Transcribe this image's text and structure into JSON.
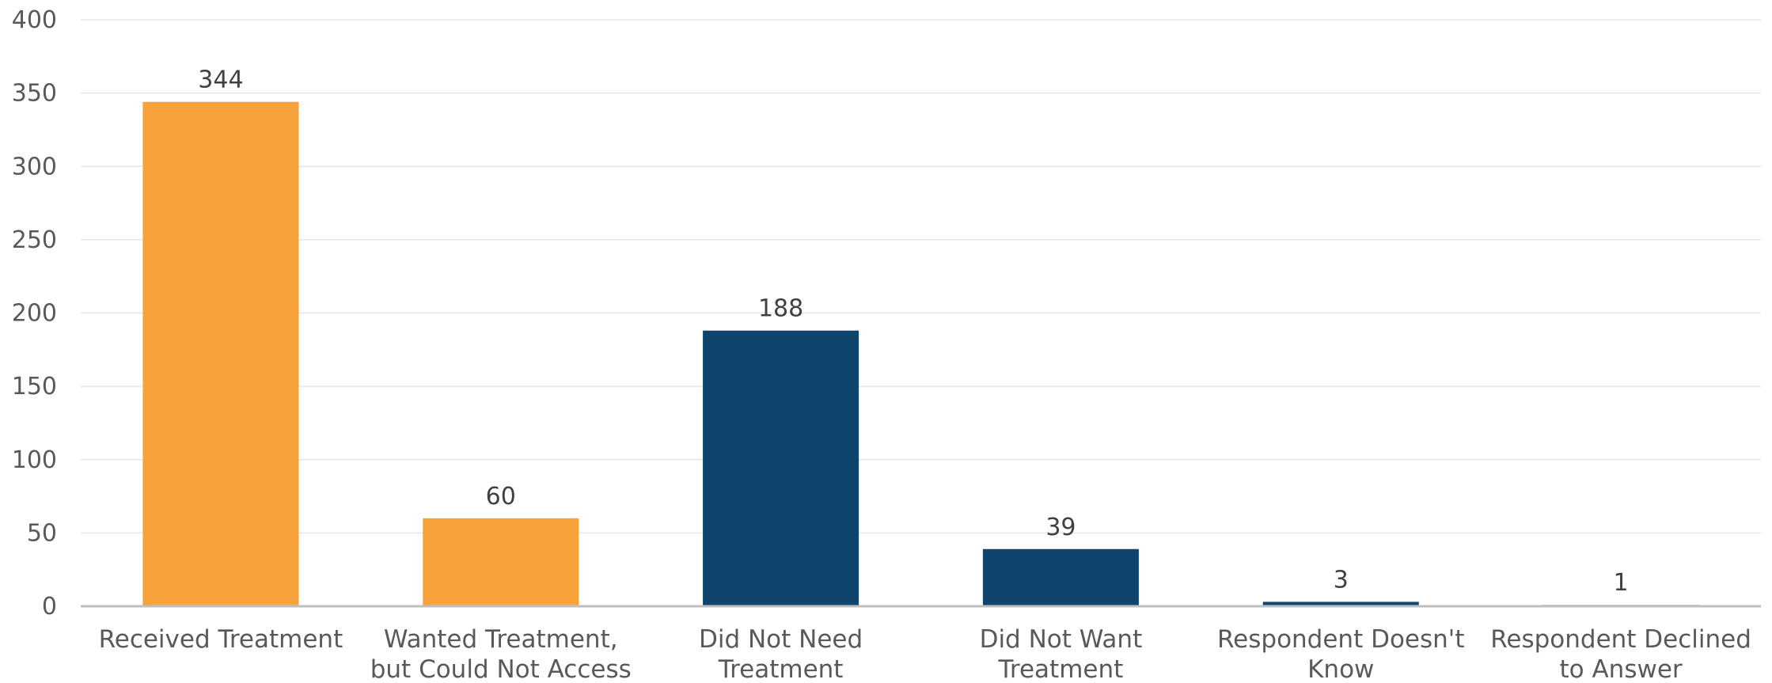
{
  "chart_data": {
    "type": "bar",
    "title": "",
    "xlabel": "",
    "ylabel": "",
    "categories": [
      [
        "Received Treatment"
      ],
      [
        "Wanted Treatment,",
        "but Could Not Access"
      ],
      [
        "Did Not Need",
        "Treatment"
      ],
      [
        "Did Not Want",
        "Treatment"
      ],
      [
        "Respondent Doesn't",
        "Know"
      ],
      [
        "Respondent Declined",
        "to Answer"
      ]
    ],
    "values": [
      344,
      60,
      188,
      39,
      3,
      1
    ],
    "data_labels": [
      "344",
      "60",
      "188",
      "39",
      "3",
      "1"
    ],
    "bar_colors": [
      "#f7a23b",
      "#f7a23b",
      "#0f446c",
      "#0f446c",
      "#0f446c",
      "#b3c7d6"
    ],
    "ylim": [
      0,
      400
    ],
    "yticks": [
      0,
      50,
      100,
      150,
      200,
      250,
      300,
      350,
      400
    ],
    "ytick_labels": [
      "0",
      "50",
      "100",
      "150",
      "200",
      "250",
      "300",
      "350",
      "400"
    ],
    "grid": true,
    "legend": "none"
  }
}
